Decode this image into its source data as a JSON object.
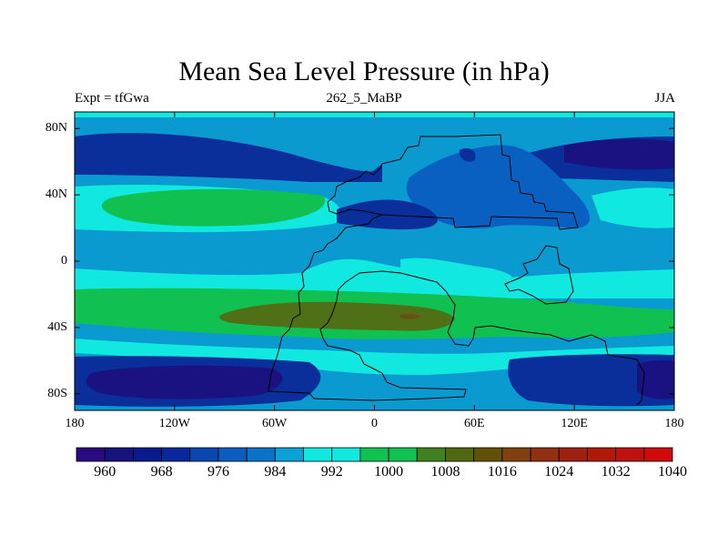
{
  "title": "Mean Sea Level Pressure (in hPa)",
  "subtitle_left": "Expt = tfGwa",
  "subtitle_center": "262_5_MaBP",
  "subtitle_right": "JJA",
  "lat_ticks": [
    {
      "label": "80N",
      "lat": 80
    },
    {
      "label": "40N",
      "lat": 40
    },
    {
      "label": "0",
      "lat": 0
    },
    {
      "label": "40S",
      "lat": -40
    },
    {
      "label": "80S",
      "lat": -80
    }
  ],
  "lon_ticks": [
    {
      "label": "180",
      "lon": -180
    },
    {
      "label": "120W",
      "lon": -120
    },
    {
      "label": "60W",
      "lon": -60
    },
    {
      "label": "0",
      "lon": 0
    },
    {
      "label": "60E",
      "lon": 60
    },
    {
      "label": "120E",
      "lon": 120
    },
    {
      "label": "180",
      "lon": 180
    }
  ],
  "colorbar": {
    "colors": [
      "#2a0a80",
      "#16127e",
      "#0a1a8c",
      "#0a289c",
      "#0a46b2",
      "#0a5ec0",
      "#0a72c8",
      "#0aa0d8",
      "#10e8e0",
      "#10e8e0",
      "#10c050",
      "#10c050",
      "#408020",
      "#506810",
      "#605008",
      "#804010",
      "#903010",
      "#a02010",
      "#b01808",
      "#c01010",
      "#d00a0a"
    ],
    "labels": [
      {
        "text": "960",
        "index": 1
      },
      {
        "text": "968",
        "index": 3
      },
      {
        "text": "976",
        "index": 5
      },
      {
        "text": "984",
        "index": 7
      },
      {
        "text": "992",
        "index": 9
      },
      {
        "text": "1000",
        "index": 11
      },
      {
        "text": "1008",
        "index": 13
      },
      {
        "text": "1016",
        "index": 15
      },
      {
        "text": "1024",
        "index": 17
      },
      {
        "text": "1032",
        "index": 19
      },
      {
        "text": "1040",
        "index": 21
      }
    ]
  },
  "field_colors": {
    "bg": "#0a9ad0",
    "deep_low": "#1a1280",
    "low": "#0a2e9a",
    "mid_low": "#0a60c0",
    "mid": "#0a9ad0",
    "cyan": "#10e8e0",
    "green": "#10c050",
    "olive": "#507018",
    "brown": "#6a5010"
  },
  "coastline": "Pangaea (Late Triassic, 262.5 Ma BP)"
}
